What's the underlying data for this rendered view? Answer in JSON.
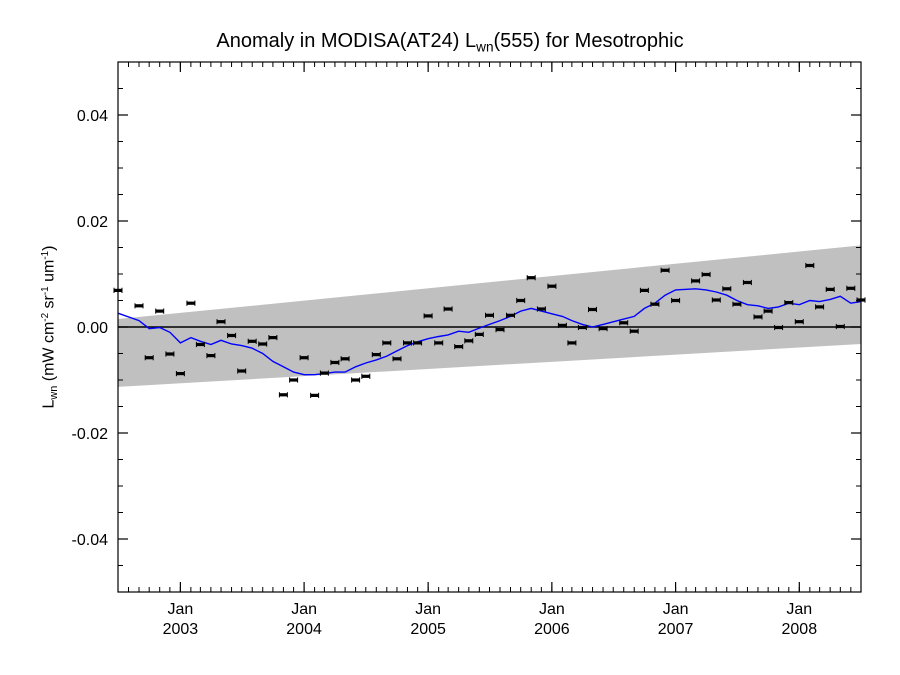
{
  "chart_data": {
    "type": "line",
    "title": {
      "prefix": "Anomaly in MODISA(AT24) L",
      "sub": "wn",
      "suffix": "(555) for Mesotrophic"
    },
    "ylabel": {
      "prefix": "L",
      "sub": "wn",
      "unit_open": " (mW cm",
      "exp1": "-2",
      "mid": " sr",
      "exp2": "-1",
      "unit_tail": " um",
      "exp3": "-1",
      "close": ")"
    },
    "xlim": [
      "2002-07-01",
      "2008-07-01"
    ],
    "ylim": [
      -0.05,
      0.05
    ],
    "yticks": [
      {
        "value": 0.04,
        "label": "0.04"
      },
      {
        "value": 0.02,
        "label": "0.02"
      },
      {
        "value": 0.0,
        "label": "0.00"
      },
      {
        "value": -0.02,
        "label": "-0.02"
      },
      {
        "value": -0.04,
        "label": "-0.04"
      }
    ],
    "yminor_step": 0.005,
    "xticks": [
      {
        "date": "2003-01-01",
        "month": "Jan",
        "year": "2003"
      },
      {
        "date": "2004-01-01",
        "month": "Jan",
        "year": "2004"
      },
      {
        "date": "2005-01-01",
        "month": "Jan",
        "year": "2005"
      },
      {
        "date": "2006-01-01",
        "month": "Jan",
        "year": "2006"
      },
      {
        "date": "2007-01-01",
        "month": "Jan",
        "year": "2007"
      },
      {
        "date": "2008-01-01",
        "month": "Jan",
        "year": "2008"
      }
    ],
    "zero_line": 0.0,
    "band": {
      "start": {
        "date": "2002-07-01",
        "lower": -0.0113,
        "upper": 0.0015
      },
      "end": {
        "date": "2008-07-01",
        "lower": -0.0032,
        "upper": 0.0154
      },
      "color": "#c0c0c0"
    },
    "points": [
      {
        "date": "2002-07-01",
        "y": 0.0069
      },
      {
        "date": "2002-09-01",
        "y": 0.004
      },
      {
        "date": "2002-10-01",
        "y": -0.0058
      },
      {
        "date": "2002-11-01",
        "y": 0.003
      },
      {
        "date": "2002-12-01",
        "y": -0.0051
      },
      {
        "date": "2003-01-01",
        "y": -0.0088
      },
      {
        "date": "2003-02-01",
        "y": 0.0045
      },
      {
        "date": "2003-03-01",
        "y": -0.0033
      },
      {
        "date": "2003-04-01",
        "y": -0.0054
      },
      {
        "date": "2003-05-01",
        "y": 0.001
      },
      {
        "date": "2003-06-01",
        "y": -0.0016
      },
      {
        "date": "2003-07-01",
        "y": -0.0083
      },
      {
        "date": "2003-08-01",
        "y": -0.0027
      },
      {
        "date": "2003-09-01",
        "y": -0.0032
      },
      {
        "date": "2003-10-01",
        "y": -0.002
      },
      {
        "date": "2003-11-01",
        "y": -0.0128
      },
      {
        "date": "2003-12-01",
        "y": -0.01
      },
      {
        "date": "2004-01-01",
        "y": -0.0058
      },
      {
        "date": "2004-02-01",
        "y": -0.0129
      },
      {
        "date": "2004-03-01",
        "y": -0.0087
      },
      {
        "date": "2004-04-01",
        "y": -0.0067
      },
      {
        "date": "2004-05-01",
        "y": -0.006
      },
      {
        "date": "2004-06-01",
        "y": -0.01
      },
      {
        "date": "2004-07-01",
        "y": -0.0093
      },
      {
        "date": "2004-08-01",
        "y": -0.0052
      },
      {
        "date": "2004-09-01",
        "y": -0.003
      },
      {
        "date": "2004-10-01",
        "y": -0.006
      },
      {
        "date": "2004-11-01",
        "y": -0.003
      },
      {
        "date": "2004-12-01",
        "y": -0.003
      },
      {
        "date": "2005-01-01",
        "y": 0.0021
      },
      {
        "date": "2005-02-01",
        "y": -0.003
      },
      {
        "date": "2005-03-01",
        "y": 0.0034
      },
      {
        "date": "2005-04-01",
        "y": -0.0037
      },
      {
        "date": "2005-05-01",
        "y": -0.0026
      },
      {
        "date": "2005-06-01",
        "y": -0.0014
      },
      {
        "date": "2005-07-01",
        "y": 0.0022
      },
      {
        "date": "2005-08-01",
        "y": -0.0005
      },
      {
        "date": "2005-09-01",
        "y": 0.0022
      },
      {
        "date": "2005-10-01",
        "y": 0.005
      },
      {
        "date": "2005-11-01",
        "y": 0.0093
      },
      {
        "date": "2005-12-01",
        "y": 0.0034
      },
      {
        "date": "2006-01-01",
        "y": 0.0077
      },
      {
        "date": "2006-02-01",
        "y": 0.0003
      },
      {
        "date": "2006-03-01",
        "y": -0.003
      },
      {
        "date": "2006-04-01",
        "y": -0.0001
      },
      {
        "date": "2006-05-01",
        "y": 0.0033
      },
      {
        "date": "2006-06-01",
        "y": -0.0003
      },
      {
        "date": "2006-08-01",
        "y": 0.0008
      },
      {
        "date": "2006-09-01",
        "y": -0.0008
      },
      {
        "date": "2006-10-01",
        "y": 0.0069
      },
      {
        "date": "2006-11-01",
        "y": 0.0043
      },
      {
        "date": "2006-12-01",
        "y": 0.0107
      },
      {
        "date": "2007-01-01",
        "y": 0.005
      },
      {
        "date": "2007-03-01",
        "y": 0.0087
      },
      {
        "date": "2007-04-01",
        "y": 0.0099
      },
      {
        "date": "2007-05-01",
        "y": 0.0051
      },
      {
        "date": "2007-06-01",
        "y": 0.0072
      },
      {
        "date": "2007-07-01",
        "y": 0.0043
      },
      {
        "date": "2007-08-01",
        "y": 0.0084
      },
      {
        "date": "2007-09-01",
        "y": 0.0019
      },
      {
        "date": "2007-10-01",
        "y": 0.003
      },
      {
        "date": "2007-11-01",
        "y": -0.0001
      },
      {
        "date": "2007-12-01",
        "y": 0.0046
      },
      {
        "date": "2008-01-01",
        "y": 0.001
      },
      {
        "date": "2008-02-01",
        "y": 0.0116
      },
      {
        "date": "2008-03-01",
        "y": 0.0038
      },
      {
        "date": "2008-04-01",
        "y": 0.0071
      },
      {
        "date": "2008-05-01",
        "y": 0.0001
      },
      {
        "date": "2008-06-01",
        "y": 0.0073
      },
      {
        "date": "2008-07-01",
        "y": 0.0051
      }
    ],
    "point_color": "#000000",
    "line_color": "#0000ff",
    "line": [
      {
        "date": "2002-07-01",
        "y": 0.0026
      },
      {
        "date": "2002-09-01",
        "y": 0.0012
      },
      {
        "date": "2002-10-01",
        "y": -0.0003
      },
      {
        "date": "2002-11-01",
        "y": -0.0001
      },
      {
        "date": "2002-12-01",
        "y": -0.001
      },
      {
        "date": "2003-01-01",
        "y": -0.003
      },
      {
        "date": "2003-02-01",
        "y": -0.002
      },
      {
        "date": "2003-03-01",
        "y": -0.0027
      },
      {
        "date": "2003-04-01",
        "y": -0.0033
      },
      {
        "date": "2003-05-01",
        "y": -0.0025
      },
      {
        "date": "2003-06-01",
        "y": -0.0032
      },
      {
        "date": "2003-07-01",
        "y": -0.0035
      },
      {
        "date": "2003-08-01",
        "y": -0.004
      },
      {
        "date": "2003-09-01",
        "y": -0.005
      },
      {
        "date": "2003-10-01",
        "y": -0.0065
      },
      {
        "date": "2003-11-01",
        "y": -0.0075
      },
      {
        "date": "2003-12-01",
        "y": -0.0085
      },
      {
        "date": "2004-01-01",
        "y": -0.009
      },
      {
        "date": "2004-02-01",
        "y": -0.009
      },
      {
        "date": "2004-03-01",
        "y": -0.0088
      },
      {
        "date": "2004-04-01",
        "y": -0.0085
      },
      {
        "date": "2004-05-01",
        "y": -0.0085
      },
      {
        "date": "2004-06-01",
        "y": -0.0075
      },
      {
        "date": "2004-07-01",
        "y": -0.0068
      },
      {
        "date": "2004-08-01",
        "y": -0.0062
      },
      {
        "date": "2004-09-01",
        "y": -0.0055
      },
      {
        "date": "2004-10-01",
        "y": -0.0045
      },
      {
        "date": "2004-11-01",
        "y": -0.0035
      },
      {
        "date": "2004-12-01",
        "y": -0.0028
      },
      {
        "date": "2005-01-01",
        "y": -0.0022
      },
      {
        "date": "2005-02-01",
        "y": -0.0018
      },
      {
        "date": "2005-03-01",
        "y": -0.0015
      },
      {
        "date": "2005-04-01",
        "y": -0.0008
      },
      {
        "date": "2005-05-01",
        "y": -0.001
      },
      {
        "date": "2005-06-01",
        "y": -0.0002
      },
      {
        "date": "2005-07-01",
        "y": 0.0005
      },
      {
        "date": "2005-08-01",
        "y": 0.0012
      },
      {
        "date": "2005-09-01",
        "y": 0.002
      },
      {
        "date": "2005-10-01",
        "y": 0.003
      },
      {
        "date": "2005-11-01",
        "y": 0.0035
      },
      {
        "date": "2005-12-01",
        "y": 0.003
      },
      {
        "date": "2006-01-01",
        "y": 0.0025
      },
      {
        "date": "2006-02-01",
        "y": 0.002
      },
      {
        "date": "2006-03-01",
        "y": 0.0012
      },
      {
        "date": "2006-04-01",
        "y": 0.0005
      },
      {
        "date": "2006-05-01",
        "y": 0.0
      },
      {
        "date": "2006-06-01",
        "y": 0.0005
      },
      {
        "date": "2006-08-01",
        "y": 0.0015
      },
      {
        "date": "2006-09-01",
        "y": 0.002
      },
      {
        "date": "2006-10-01",
        "y": 0.0035
      },
      {
        "date": "2006-11-01",
        "y": 0.0045
      },
      {
        "date": "2006-12-01",
        "y": 0.006
      },
      {
        "date": "2007-01-01",
        "y": 0.007
      },
      {
        "date": "2007-03-01",
        "y": 0.0072
      },
      {
        "date": "2007-04-01",
        "y": 0.007
      },
      {
        "date": "2007-05-01",
        "y": 0.0066
      },
      {
        "date": "2007-06-01",
        "y": 0.006
      },
      {
        "date": "2007-07-01",
        "y": 0.005
      },
      {
        "date": "2007-08-01",
        "y": 0.0042
      },
      {
        "date": "2007-09-01",
        "y": 0.004
      },
      {
        "date": "2007-10-01",
        "y": 0.0035
      },
      {
        "date": "2007-11-01",
        "y": 0.0038
      },
      {
        "date": "2007-12-01",
        "y": 0.0045
      },
      {
        "date": "2008-01-01",
        "y": 0.0042
      },
      {
        "date": "2008-02-01",
        "y": 0.005
      },
      {
        "date": "2008-03-01",
        "y": 0.0048
      },
      {
        "date": "2008-04-01",
        "y": 0.0052
      },
      {
        "date": "2008-05-01",
        "y": 0.0058
      },
      {
        "date": "2008-06-01",
        "y": 0.0045
      },
      {
        "date": "2008-07-01",
        "y": 0.0048
      }
    ],
    "grid": false,
    "legend": "none"
  }
}
